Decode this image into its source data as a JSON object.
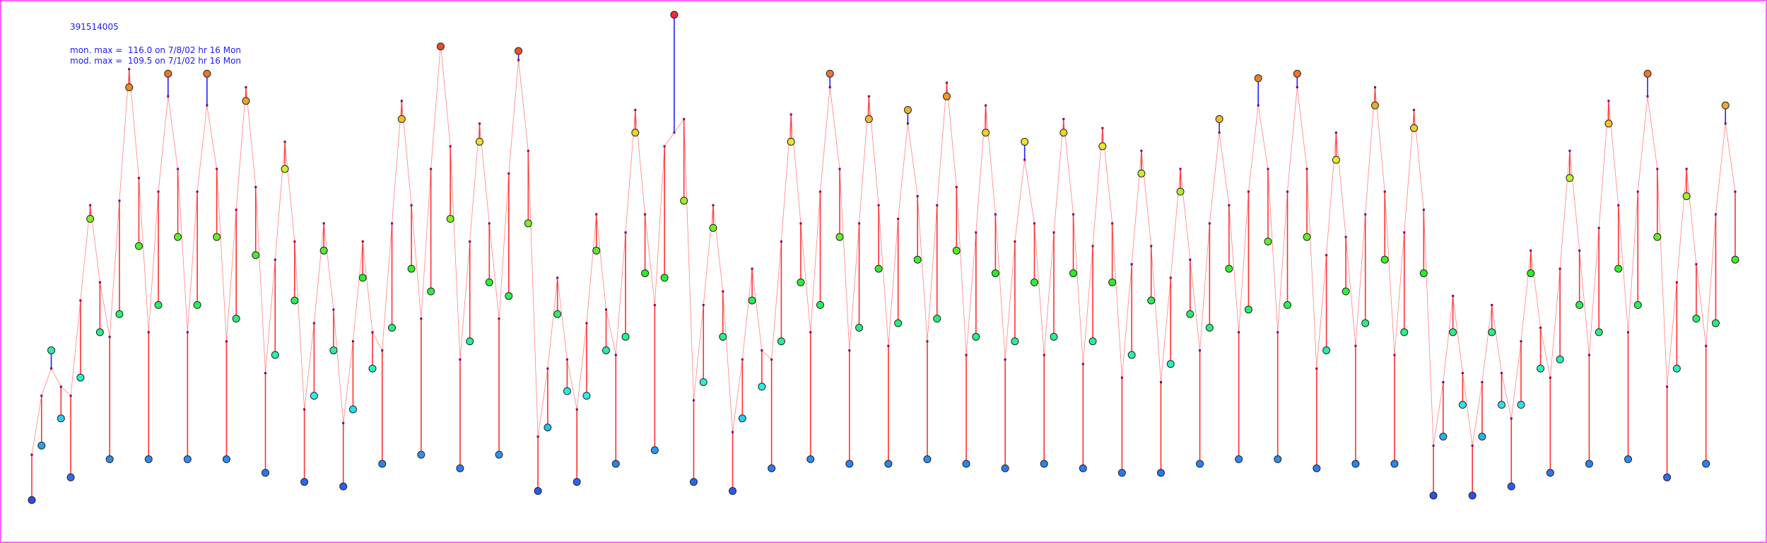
{
  "chart_data": {
    "type": "monitor-model",
    "title": "391514005",
    "annotations": [
      "mon. max =  116.0 on 7/8/02 hr 16 Mon",
      "mod. max =  109.5 on 7/1/02 hr 16 Mon"
    ],
    "ylim": [
      0,
      118
    ],
    "over_color": "#ff3030",
    "under_color": "#2020ff",
    "series": [
      {
        "values": [
          9,
          21,
          42,
          27,
          14,
          36,
          71,
          46,
          18,
          50,
          100,
          65,
          18,
          52,
          103,
          67,
          18,
          52,
          103,
          67,
          18,
          49,
          97,
          63,
          15,
          41,
          82,
          53,
          13,
          32,
          64,
          42,
          12,
          29,
          58,
          38,
          17,
          47,
          93,
          60,
          19,
          55,
          109,
          71,
          16,
          44,
          88,
          57,
          19,
          54,
          108,
          70,
          11,
          25,
          50,
          33,
          13,
          32,
          64,
          42,
          17,
          45,
          90,
          59,
          20,
          58,
          116,
          75,
          13,
          35,
          69,
          45,
          11,
          27,
          53,
          34,
          16,
          44,
          88,
          57,
          18,
          52,
          103,
          67,
          17,
          47,
          93,
          60,
          17,
          48,
          95,
          62,
          18,
          49,
          98,
          64,
          17,
          45,
          90,
          59,
          16,
          44,
          88,
          57,
          17,
          45,
          90,
          59,
          16,
          44,
          87,
          57,
          15,
          41,
          81,
          53,
          15,
          39,
          77,
          50,
          17,
          47,
          93,
          60,
          18,
          51,
          102,
          66,
          18,
          52,
          103,
          67,
          16,
          42,
          84,
          55,
          17,
          48,
          96,
          62,
          17,
          46,
          91,
          59,
          10,
          23,
          46,
          30,
          10,
          23,
          46,
          30,
          12,
          30,
          59,
          38,
          15,
          40,
          80,
          52,
          17,
          46,
          92,
          60,
          18,
          52,
          103,
          67,
          14,
          38,
          76,
          49,
          17,
          48,
          96,
          62
        ]
      },
      {
        "values": [
          19,
          32,
          38,
          34,
          32,
          53,
          74,
          57,
          45,
          75,
          104,
          80,
          46,
          77,
          98,
          82,
          46,
          77,
          96,
          82,
          44,
          73,
          100,
          78,
          37,
          62,
          88,
          66,
          29,
          48,
          70,
          51,
          26,
          44,
          66,
          46,
          42,
          70,
          97,
          74,
          49,
          82,
          109.5,
          87,
          40,
          66,
          92,
          70,
          49,
          81,
          106,
          86,
          23,
          38,
          58,
          40,
          29,
          48,
          72,
          51,
          41,
          68,
          95,
          72,
          52,
          87,
          90,
          93,
          31,
          52,
          74,
          55,
          24,
          40,
          60,
          42,
          40,
          66,
          94,
          70,
          46,
          77,
          100,
          82,
          42,
          70,
          98,
          74,
          43,
          71,
          92,
          76,
          44,
          74,
          101,
          78,
          41,
          68,
          96,
          72,
          40,
          66,
          84,
          70,
          41,
          68,
          93,
          72,
          39,
          65,
          91,
          70,
          36,
          61,
          86,
          65,
          35,
          58,
          82,
          62,
          42,
          70,
          90,
          74,
          46,
          77,
          96,
          82,
          46,
          77,
          100,
          82,
          38,
          63,
          90,
          67,
          43,
          72,
          100,
          77,
          41,
          68,
          95,
          73,
          21,
          35,
          54,
          37,
          21,
          35,
          52,
          37,
          27,
          44,
          64,
          47,
          36,
          60,
          86,
          64,
          41,
          69,
          97,
          74,
          46,
          77,
          98,
          82,
          34,
          57,
          82,
          61,
          43,
          72,
          92,
          77
        ]
      }
    ]
  }
}
